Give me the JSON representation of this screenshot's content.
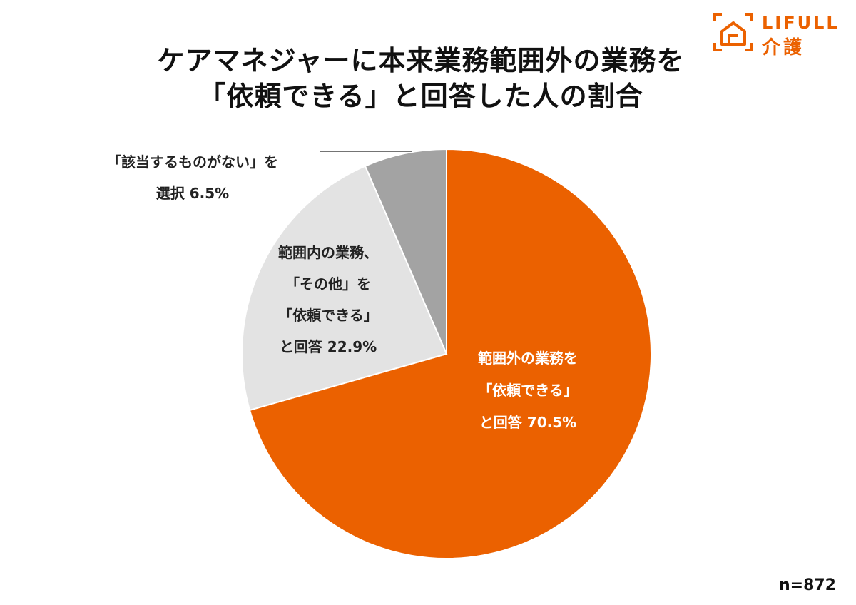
{
  "title": {
    "line1": "ケアマネジャーに本来業務範囲外の業務を",
    "line2": "「依頼できる」と回答した人の割合"
  },
  "logo": {
    "brand": "LIFULL",
    "sub": "介護",
    "color": "#EB6100"
  },
  "sample_size": "n=872",
  "chart_data": {
    "type": "pie",
    "start_angle_deg": 0,
    "direction": "clockwise",
    "slices": [
      {
        "key": "outside_range",
        "value": 70.5,
        "color": "#EB6100",
        "label_lines": [
          "範囲外の業務を",
          "「依頼できる」",
          "と回答 70.5%"
        ]
      },
      {
        "key": "inside_range",
        "value": 22.9,
        "color": "#E3E3E3",
        "label_lines": [
          "範囲内の業務、",
          "「その他」を",
          "「依頼できる」",
          "と回答 22.9%"
        ]
      },
      {
        "key": "none_applicable",
        "value": 6.5,
        "color": "#A3A3A3",
        "label_lines": [
          "「該当するものがない」を",
          "選択 6.5%"
        ]
      }
    ]
  }
}
